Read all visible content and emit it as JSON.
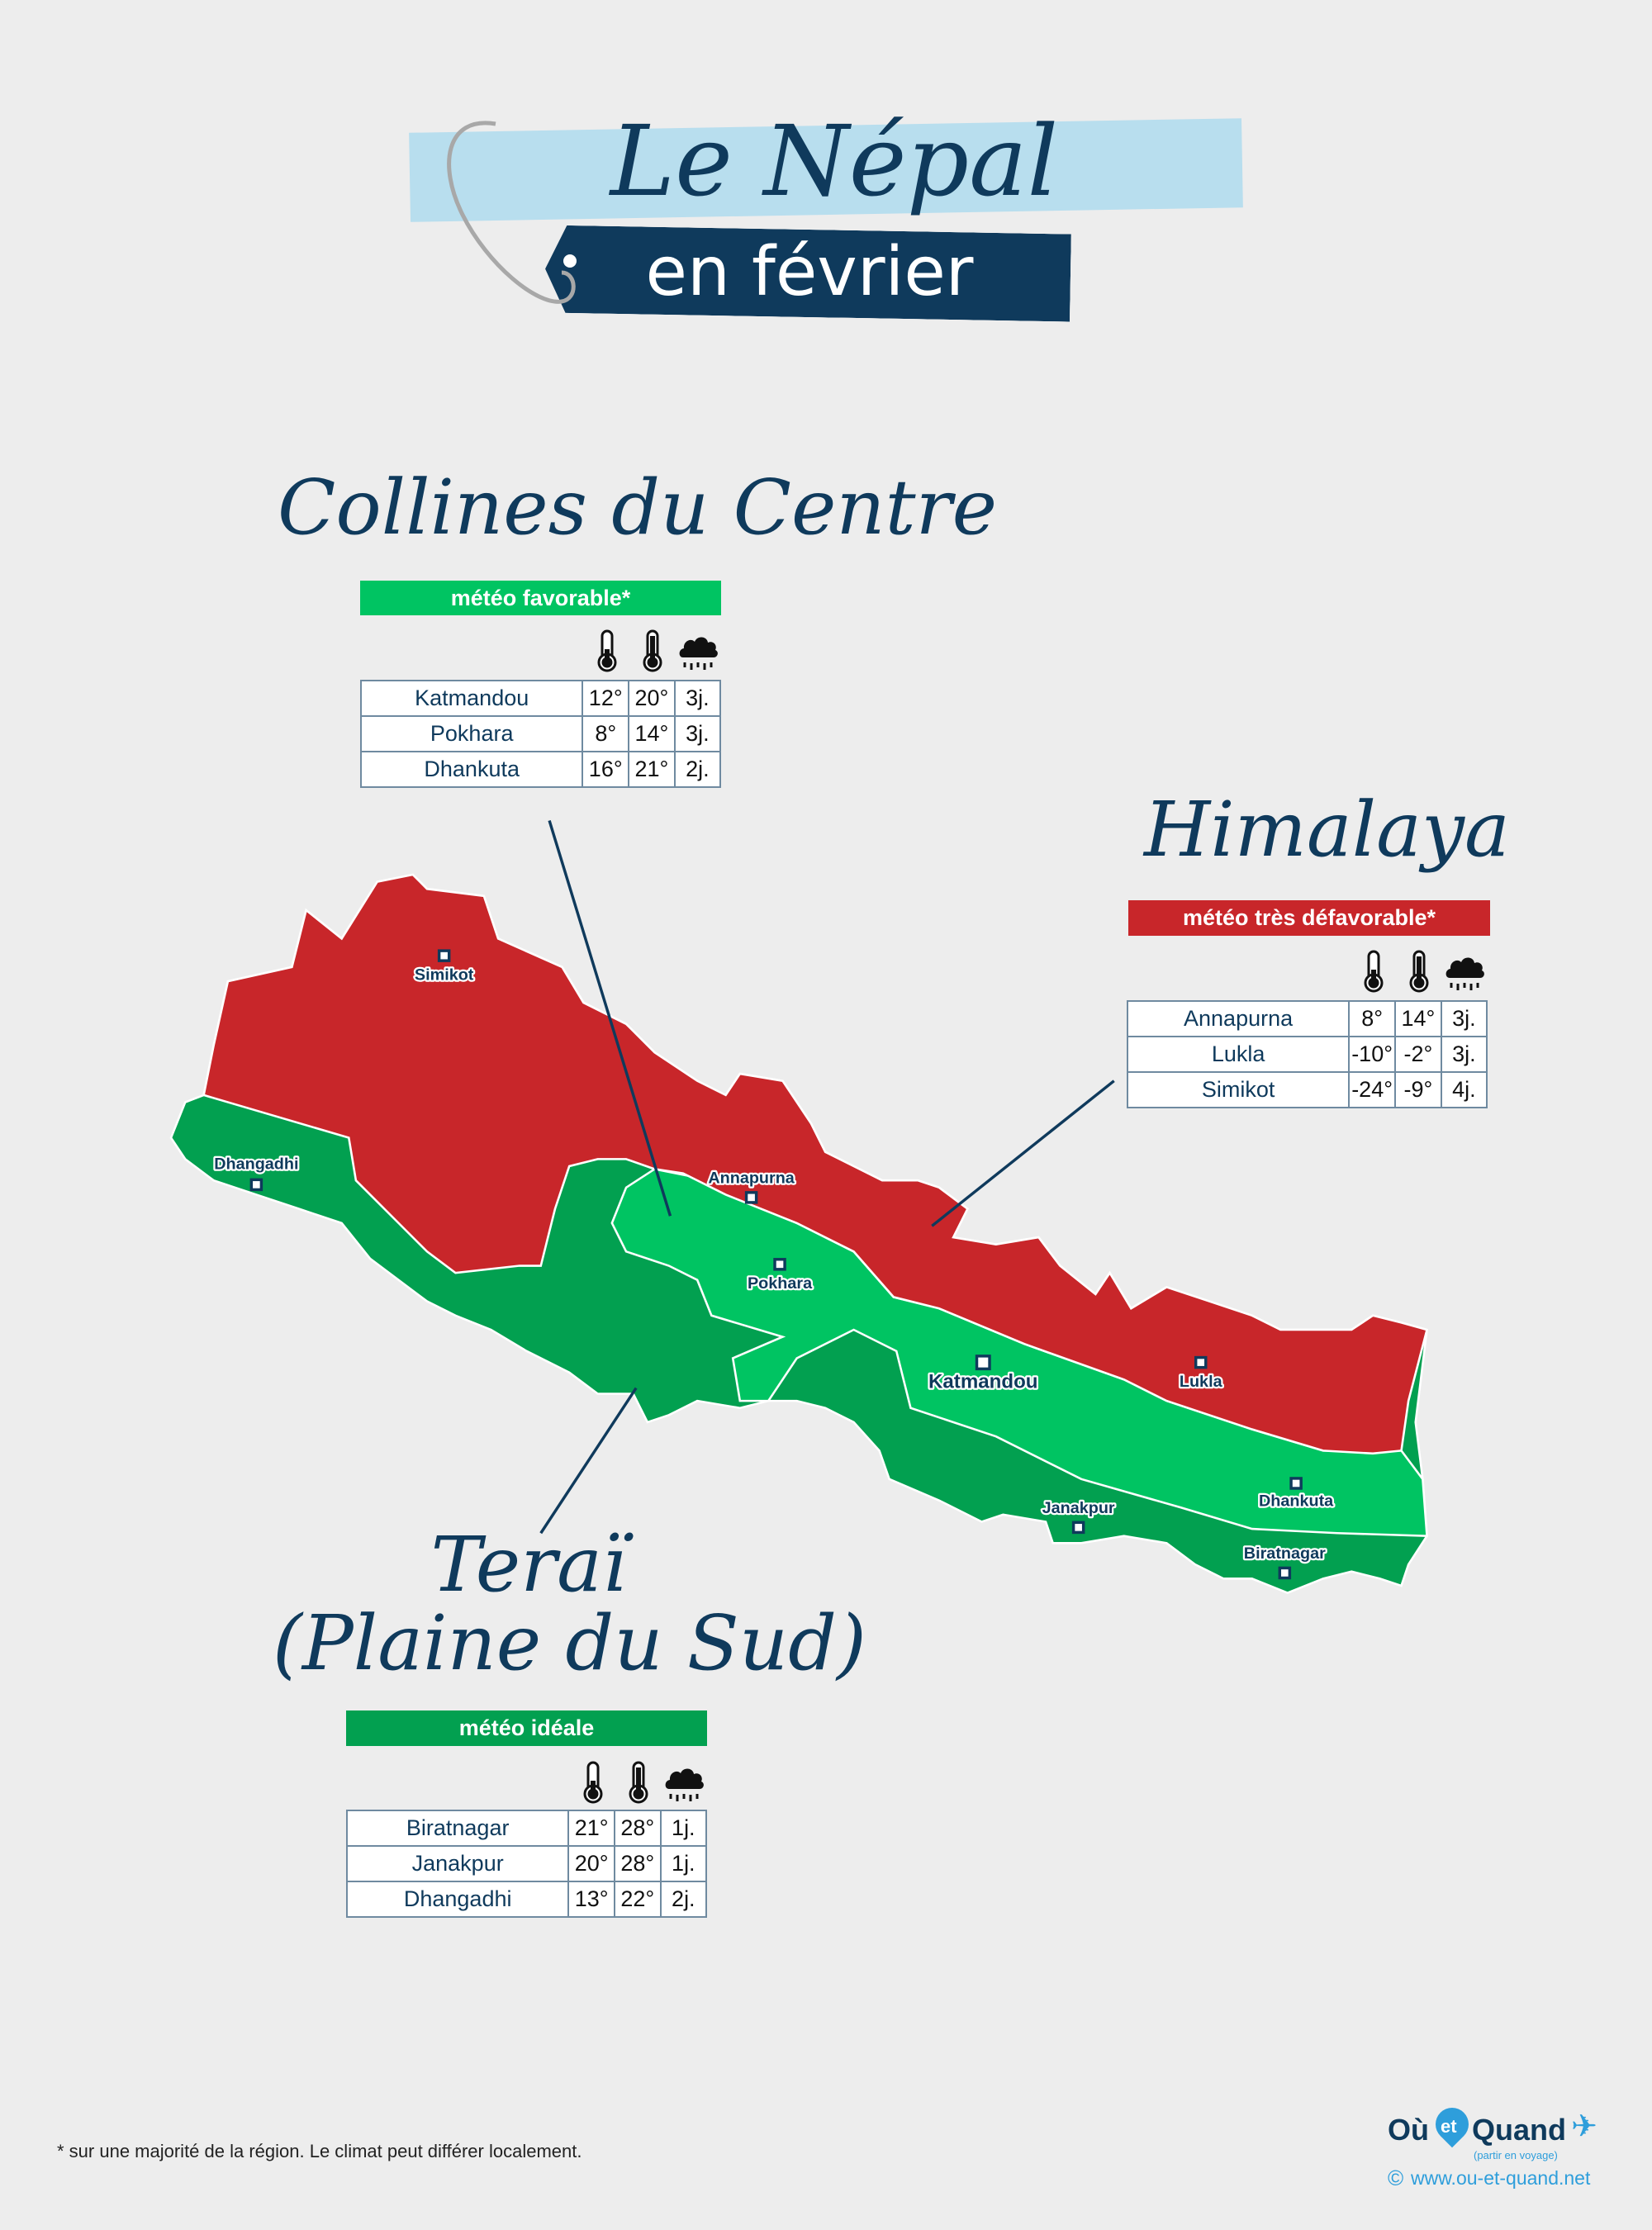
{
  "header": {
    "title": "Le Népal",
    "subtitle": "en février"
  },
  "colors": {
    "himalaya": "#c8262a",
    "collines": "#00c462",
    "terai": "#02a050",
    "navy": "#0f3a5c",
    "banner_light": "#b8deee",
    "logo_blue": "#2e9edb"
  },
  "icons": [
    "thermometer-low-icon",
    "thermometer-high-icon",
    "cloud-rain-icon"
  ],
  "regions": [
    {
      "id": "collines",
      "title": "Collines du Centre",
      "rating": "météo favorable*",
      "color": "#00c462",
      "rows": [
        [
          "Katmandou",
          "12°",
          "20°",
          "3j."
        ],
        [
          "Pokhara",
          "8°",
          "14°",
          "3j."
        ],
        [
          "Dhankuta",
          "16°",
          "21°",
          "2j."
        ]
      ]
    },
    {
      "id": "himalaya",
      "title": "Himalaya",
      "rating": "météo très défavorable*",
      "color": "#c8262a",
      "rows": [
        [
          "Annapurna",
          "8°",
          "14°",
          "3j."
        ],
        [
          "Lukla",
          "-10°",
          "-2°",
          "3j."
        ],
        [
          "Simikot",
          "-24°",
          "-9°",
          "4j."
        ]
      ]
    },
    {
      "id": "terai",
      "title": "Teraï",
      "title2": "(Plaine du Sud)",
      "rating": "météo idéale",
      "color": "#02a050",
      "rows": [
        [
          "Biratnagar",
          "21°",
          "28°",
          "1j."
        ],
        [
          "Janakpur",
          "20°",
          "28°",
          "1j."
        ],
        [
          "Dhangadhi",
          "13°",
          "22°",
          "2j."
        ]
      ]
    }
  ],
  "map": {
    "cities": [
      "Simikot",
      "Dhangadhi",
      "Annapurna",
      "Pokhara",
      "Katmandou",
      "Lukla",
      "Dhankuta",
      "Janakpur",
      "Biratnagar"
    ]
  },
  "footer": {
    "note": "* sur une majorité de la région. Le climat peut différer localement.",
    "logo_ou": "Où",
    "logo_et": "et",
    "logo_quand": "Quand",
    "logo_tagline": "(partir en voyage)",
    "website": "www.ou-et-quand.net"
  }
}
